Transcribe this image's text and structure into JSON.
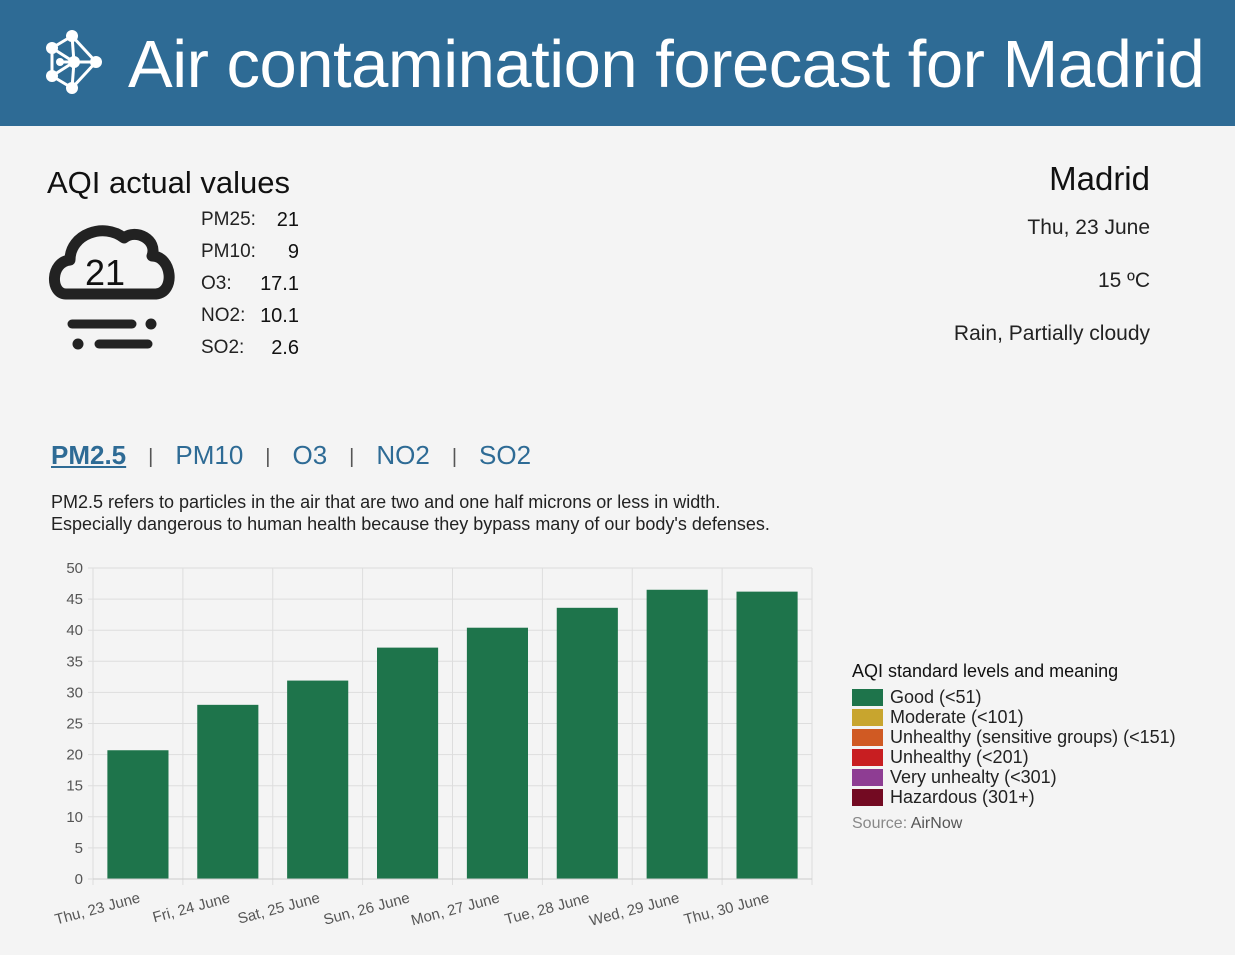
{
  "header": {
    "title": "Air contamination forecast for Madrid",
    "logo_icon": "neural-network-icon",
    "bg_color": "#2e6b95"
  },
  "aqi": {
    "title": "AQI actual values",
    "icon": "cloud-rain-fog-icon",
    "value": "21",
    "pollutants": [
      {
        "label": "PM25:",
        "value": "21"
      },
      {
        "label": "PM10:",
        "value": "9"
      },
      {
        "label": "O3:",
        "value": "17.1"
      },
      {
        "label": "NO2:",
        "value": "10.1"
      },
      {
        "label": "SO2:",
        "value": "2.6"
      }
    ]
  },
  "location": {
    "city": "Madrid",
    "date": "Thu, 23 June",
    "temperature": "15 ºC",
    "conditions": "Rain, Partially cloudy"
  },
  "tabs": {
    "items": [
      "PM2.5",
      "PM10",
      "O3",
      "NO2",
      "SO2"
    ],
    "separator": "|",
    "active": "PM2.5"
  },
  "description": {
    "line1": "PM2.5 refers to particles in the air that are two and one half microns or less in width.",
    "line2": "Especially dangerous to human health because they bypass many of our body's defenses."
  },
  "chart_data": {
    "type": "bar",
    "categories": [
      "Thu, 23 June",
      "Fri, 24 June",
      "Sat, 25 June",
      "Sun, 26 June",
      "Mon, 27 June",
      "Tue, 28 June",
      "Wed, 29 June",
      "Thu, 30 June"
    ],
    "values": [
      20.7,
      28.0,
      31.9,
      37.2,
      40.4,
      43.6,
      46.5,
      46.2
    ],
    "ylim": [
      0,
      50
    ],
    "yticks": [
      0,
      5,
      10,
      15,
      20,
      25,
      30,
      35,
      40,
      45,
      50
    ],
    "grid": true,
    "bar_color": "#1e744b",
    "title": "",
    "xlabel": "",
    "ylabel": ""
  },
  "legend": {
    "title": "AQI standard levels and meaning",
    "items": [
      {
        "label": "Good (<51)",
        "color": "#1e744b"
      },
      {
        "label": "Moderate (<101)",
        "color": "#c8a52e"
      },
      {
        "label": "Unhealthy (sensitive groups) (<151)",
        "color": "#d05a23"
      },
      {
        "label": "Unhealthy (<201)",
        "color": "#c81e21"
      },
      {
        "label": "Very unhealty (<301)",
        "color": "#8e3d93"
      },
      {
        "label": "Hazardous (301+)",
        "color": "#730a22"
      }
    ],
    "source_label": "Source:",
    "source_name": "AirNow"
  }
}
